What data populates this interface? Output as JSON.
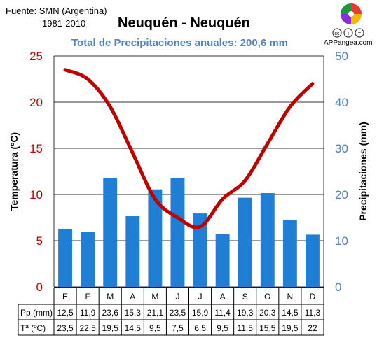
{
  "header": {
    "source": "Fuente: SMN (Argentina)",
    "period": "1981-2010",
    "title": "Neuquén - Neuquén",
    "subtitle": "Total de Precipitaciones anuales: 200,6 mm",
    "site": "APPangea.com"
  },
  "colors": {
    "bars": "#1f7fd6",
    "line": "#c00000",
    "left_axis": "#c00000",
    "right_axis": "#4f81bd",
    "grid": "#333333"
  },
  "icons": [
    "appangea-logo-icon",
    "cc-license-icon"
  ],
  "chart_data": {
    "type": "bar+line",
    "categories": [
      "E",
      "F",
      "M",
      "A",
      "M",
      "J",
      "J",
      "A",
      "S",
      "O",
      "N",
      "D"
    ],
    "series": [
      {
        "type": "bar",
        "axis": "right",
        "values": [
          12.5,
          11.9,
          23.6,
          15.3,
          21.1,
          23.5,
          15.9,
          11.4,
          19.3,
          20.3,
          14.5,
          11.3
        ]
      },
      {
        "type": "line",
        "axis": "left",
        "values": [
          23.5,
          22.5,
          19.5,
          14.5,
          9.5,
          7.5,
          6.5,
          9.5,
          11.5,
          15.5,
          19.5,
          22
        ]
      }
    ],
    "ylabel_left": "Temperatura (ºC)",
    "ylabel_right": "Precipitaciones (mm)",
    "ylim_left": [
      0,
      25
    ],
    "ylim_right": [
      0,
      50
    ],
    "yticks_left": [
      "0",
      "5",
      "10",
      "15",
      "20",
      "25"
    ],
    "yticks_right": [
      "0",
      "10",
      "20",
      "30",
      "40",
      "50"
    ],
    "grid": true
  },
  "table": {
    "pp_label": "Pp (mm)",
    "t_label": "Tª (ºC)",
    "pp_values": [
      "12,5",
      "11,9",
      "23,6",
      "15,3",
      "21,1",
      "23,5",
      "15,9",
      "11,4",
      "19,3",
      "20,3",
      "14,5",
      "11,3"
    ],
    "t_values": [
      "23,5",
      "22,5",
      "19,5",
      "14,5",
      "9,5",
      "7,5",
      "6,5",
      "9,5",
      "11,5",
      "15,5",
      "19,5",
      "22"
    ]
  }
}
